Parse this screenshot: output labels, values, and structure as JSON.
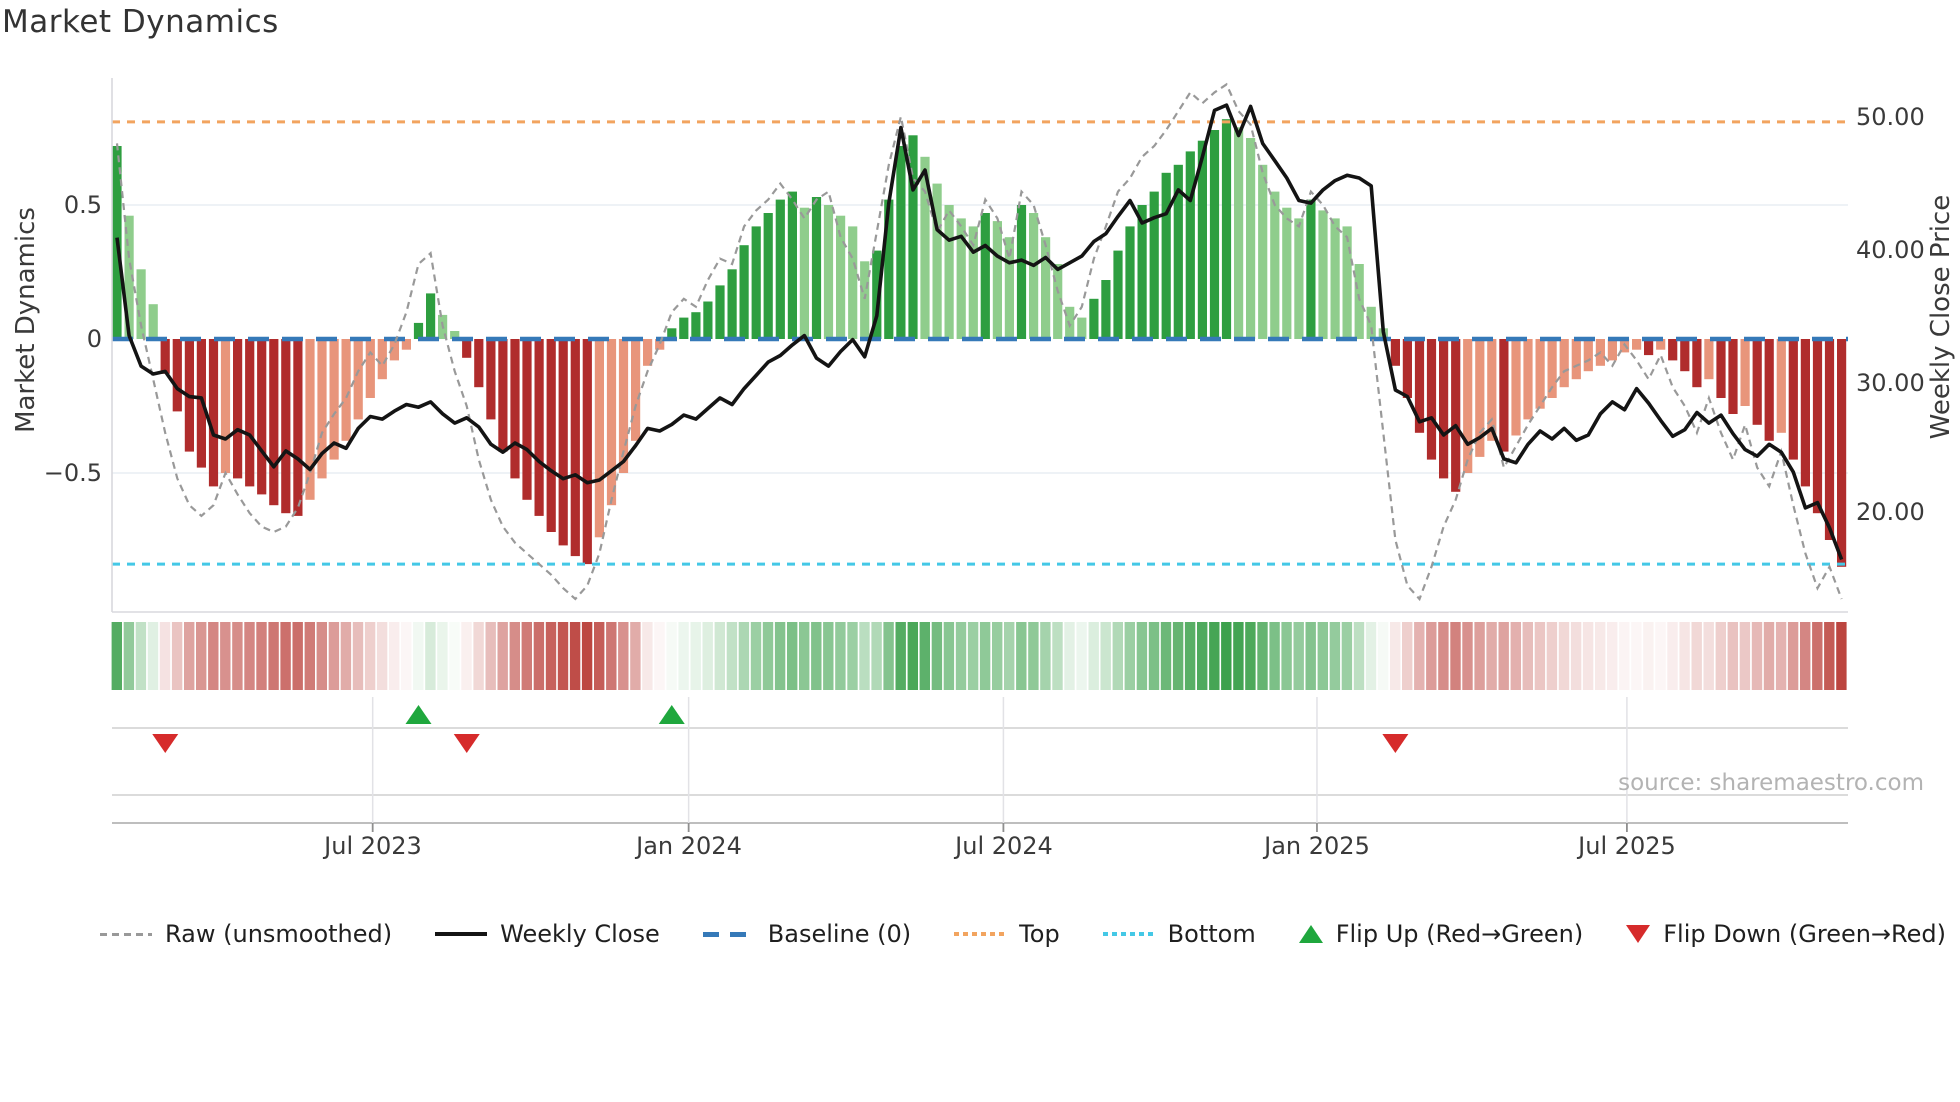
{
  "page": {
    "title": "Market Dynamics"
  },
  "source_note": "source: sharemaestro.com",
  "legend": [
    "Raw (unsmoothed)",
    "Weekly Close",
    "Baseline (0)",
    "Top",
    "Bottom",
    "Flip Up (Red→Green)",
    "Flip Down (Green→Red)"
  ],
  "chart_data": {
    "type": "composite",
    "subtypes": [
      "bar",
      "line",
      "line",
      "heatmap",
      "scatter"
    ],
    "title": "Market Dynamics",
    "ylabel_left": "Market Dynamics",
    "ylabel_right": "Weekly Close Price",
    "grid": "horizontal-only",
    "legend_position": "bottom",
    "left_axis": {
      "ticks": [
        {
          "v": 0.5,
          "label": "0.5"
        },
        {
          "v": 0,
          "label": "0"
        },
        {
          "v": -0.5,
          "label": "−0.5"
        }
      ],
      "range": [
        -0.97,
        0.97
      ]
    },
    "right_axis": {
      "ticks": [
        {
          "v": 50,
          "label": "50.00"
        },
        {
          "v": 40,
          "label": "40.00"
        },
        {
          "v": 30,
          "label": "30.00"
        },
        {
          "v": 20,
          "label": "20.00"
        }
      ],
      "range": [
        12.6,
        52.8
      ]
    },
    "x_axis": {
      "tick_labels": [
        "Jul 2023",
        "Jan 2024",
        "Jul 2024",
        "Jan 2025",
        "Jul 2025"
      ],
      "tick_weeks": [
        21.2,
        47.4,
        73.5,
        99.5,
        125.2
      ],
      "n_weeks": 144
    },
    "baseline": 0,
    "top_threshold": 0.81,
    "bottom_threshold": -0.84,
    "series": {
      "oscillator": {
        "name": "Market Dynamics (smoothed bars)",
        "values": [
          0.72,
          0.46,
          0.26,
          0.13,
          -0.13,
          -0.27,
          -0.42,
          -0.48,
          -0.55,
          -0.5,
          -0.52,
          -0.55,
          -0.58,
          -0.62,
          -0.65,
          -0.66,
          -0.6,
          -0.52,
          -0.45,
          -0.38,
          -0.3,
          -0.22,
          -0.15,
          -0.08,
          -0.04,
          0.06,
          0.17,
          0.09,
          0.03,
          -0.07,
          -0.18,
          -0.3,
          -0.42,
          -0.52,
          -0.6,
          -0.66,
          -0.72,
          -0.77,
          -0.81,
          -0.84,
          -0.74,
          -0.62,
          -0.5,
          -0.38,
          -0.1,
          -0.04,
          0.04,
          0.08,
          0.1,
          0.14,
          0.2,
          0.26,
          0.35,
          0.42,
          0.47,
          0.52,
          0.55,
          0.49,
          0.53,
          0.5,
          0.46,
          0.42,
          0.29,
          0.33,
          0.52,
          0.72,
          0.76,
          0.68,
          0.58,
          0.5,
          0.45,
          0.42,
          0.47,
          0.44,
          0.38,
          0.5,
          0.47,
          0.38,
          0.28,
          0.12,
          0.08,
          0.15,
          0.22,
          0.33,
          0.42,
          0.5,
          0.55,
          0.62,
          0.65,
          0.7,
          0.74,
          0.78,
          0.82,
          0.79,
          0.75,
          0.65,
          0.55,
          0.49,
          0.45,
          0.52,
          0.48,
          0.45,
          0.42,
          0.28,
          0.12,
          0.04,
          -0.1,
          -0.22,
          -0.35,
          -0.45,
          -0.52,
          -0.57,
          -0.5,
          -0.44,
          -0.38,
          -0.42,
          -0.36,
          -0.3,
          -0.26,
          -0.22,
          -0.18,
          -0.15,
          -0.12,
          -0.1,
          -0.08,
          -0.05,
          -0.04,
          -0.06,
          -0.04,
          -0.08,
          -0.12,
          -0.18,
          -0.15,
          -0.22,
          -0.28,
          -0.25,
          -0.32,
          -0.38,
          -0.35,
          -0.45,
          -0.55,
          -0.65,
          -0.75,
          -0.85
        ],
        "shades": [
          "D",
          "L",
          "L",
          "L",
          "D",
          "D",
          "D",
          "D",
          "D",
          "L",
          "D",
          "D",
          "D",
          "D",
          "D",
          "D",
          "L",
          "L",
          "L",
          "L",
          "L",
          "L",
          "L",
          "L",
          "L",
          "D",
          "D",
          "L",
          "L",
          "D",
          "D",
          "D",
          "D",
          "D",
          "D",
          "D",
          "D",
          "D",
          "D",
          "D",
          "L",
          "L",
          "L",
          "L",
          "L",
          "L",
          "D",
          "D",
          "D",
          "D",
          "D",
          "D",
          "D",
          "D",
          "D",
          "D",
          "D",
          "L",
          "D",
          "L",
          "L",
          "L",
          "L",
          "D",
          "D",
          "D",
          "D",
          "L",
          "L",
          "L",
          "L",
          "L",
          "D",
          "L",
          "L",
          "D",
          "L",
          "L",
          "L",
          "L",
          "L",
          "D",
          "D",
          "D",
          "D",
          "D",
          "D",
          "D",
          "D",
          "D",
          "D",
          "D",
          "D",
          "L",
          "L",
          "L",
          "L",
          "L",
          "L",
          "D",
          "L",
          "L",
          "L",
          "L",
          "L",
          "L",
          "D",
          "D",
          "D",
          "D",
          "D",
          "D",
          "L",
          "L",
          "L",
          "D",
          "L",
          "L",
          "L",
          "L",
          "L",
          "L",
          "L",
          "L",
          "L",
          "L",
          "L",
          "D",
          "L",
          "D",
          "D",
          "D",
          "L",
          "D",
          "D",
          "L",
          "D",
          "D",
          "L",
          "D",
          "D",
          "D",
          "D",
          "D"
        ]
      },
      "raw": {
        "name": "Raw (unsmoothed)",
        "values": [
          0.73,
          0.3,
          0.05,
          -0.15,
          -0.35,
          -0.52,
          -0.62,
          -0.66,
          -0.62,
          -0.5,
          -0.58,
          -0.65,
          -0.7,
          -0.72,
          -0.7,
          -0.63,
          -0.5,
          -0.35,
          -0.28,
          -0.22,
          -0.12,
          -0.05,
          -0.1,
          -0.02,
          0.1,
          0.28,
          0.32,
          0.05,
          -0.12,
          -0.25,
          -0.45,
          -0.6,
          -0.7,
          -0.76,
          -0.8,
          -0.84,
          -0.88,
          -0.93,
          -0.97,
          -0.92,
          -0.8,
          -0.6,
          -0.42,
          -0.25,
          -0.12,
          -0.02,
          0.1,
          0.15,
          0.12,
          0.22,
          0.3,
          0.28,
          0.42,
          0.48,
          0.52,
          0.58,
          0.52,
          0.45,
          0.52,
          0.55,
          0.38,
          0.3,
          0.15,
          0.4,
          0.65,
          0.83,
          0.6,
          0.55,
          0.4,
          0.48,
          0.42,
          0.35,
          0.52,
          0.45,
          0.3,
          0.55,
          0.5,
          0.35,
          0.18,
          0.05,
          0.12,
          0.3,
          0.42,
          0.55,
          0.6,
          0.68,
          0.72,
          0.78,
          0.85,
          0.92,
          0.88,
          0.92,
          0.95,
          0.85,
          0.8,
          0.62,
          0.5,
          0.45,
          0.42,
          0.55,
          0.5,
          0.42,
          0.38,
          0.15,
          0.05,
          -0.35,
          -0.75,
          -0.92,
          -0.97,
          -0.85,
          -0.7,
          -0.6,
          -0.45,
          -0.35,
          -0.3,
          -0.48,
          -0.4,
          -0.32,
          -0.25,
          -0.18,
          -0.12,
          -0.1,
          -0.08,
          -0.05,
          -0.1,
          -0.02,
          -0.08,
          -0.15,
          -0.06,
          -0.18,
          -0.25,
          -0.35,
          -0.22,
          -0.35,
          -0.45,
          -0.32,
          -0.48,
          -0.55,
          -0.42,
          -0.62,
          -0.8,
          -0.93,
          -0.85,
          -0.97
        ]
      },
      "weekly_close": {
        "name": "Weekly Close",
        "values": [
          40.9,
          33.5,
          31.2,
          30.6,
          30.8,
          29.5,
          28.9,
          28.8,
          26.0,
          25.7,
          26.4,
          26.0,
          24.8,
          23.6,
          24.8,
          24.2,
          23.4,
          24.6,
          25.4,
          25.0,
          26.5,
          27.4,
          27.2,
          27.8,
          28.3,
          28.1,
          28.5,
          27.6,
          26.9,
          27.3,
          26.6,
          25.3,
          24.7,
          25.4,
          24.9,
          24.0,
          23.3,
          22.7,
          23.0,
          22.4,
          22.6,
          23.3,
          24.0,
          25.2,
          26.5,
          26.3,
          26.8,
          27.5,
          27.2,
          28.0,
          28.8,
          28.3,
          29.5,
          30.5,
          31.5,
          32.0,
          32.8,
          33.5,
          31.8,
          31.2,
          32.3,
          33.2,
          31.9,
          35.0,
          43.5,
          49.2,
          44.5,
          46.0,
          41.5,
          40.7,
          41.0,
          39.8,
          40.3,
          39.5,
          39.0,
          39.2,
          38.8,
          39.4,
          38.5,
          39.0,
          39.5,
          40.6,
          41.2,
          42.5,
          43.7,
          42.0,
          42.4,
          42.7,
          44.5,
          43.7,
          47.0,
          50.5,
          50.9,
          48.6,
          50.8,
          48.0,
          46.7,
          45.4,
          43.7,
          43.5,
          44.5,
          45.2,
          45.6,
          45.4,
          44.8,
          33.8,
          29.4,
          28.9,
          27.0,
          27.3,
          26.0,
          26.7,
          25.3,
          25.8,
          26.5,
          24.2,
          23.9,
          25.3,
          26.3,
          25.7,
          26.5,
          25.6,
          26.0,
          27.6,
          28.5,
          27.9,
          29.5,
          28.4,
          27.1,
          25.9,
          26.4,
          27.7,
          26.9,
          27.5,
          26.1,
          24.9,
          24.4,
          25.3,
          24.7,
          23.2,
          20.5,
          20.9,
          19.0,
          16.6
        ]
      }
    },
    "flip_markers": {
      "up_weeks": [
        25,
        46
      ],
      "down_weeks": [
        4,
        29,
        106
      ]
    },
    "colors": {
      "bar_pos_strong": "#2e9e40",
      "bar_pos_soft": "#8fcd8c",
      "bar_neg_strong": "#b02c2c",
      "bar_neg_soft": "#e8957b",
      "close_line": "#141414",
      "raw_line": "#999999",
      "baseline": "#3579b8",
      "top_line": "#f2a45f",
      "bottom_line": "#44c8e6",
      "flip_up": "#1fa73d",
      "flip_down": "#d62b2b",
      "grid": "#e9edf4",
      "panel_grid": "#cfcfcf",
      "panel_vgrid": "#e2e2e6",
      "axis_line": "#b5b5b5",
      "spine": "#d8d8dd",
      "heat_pos": [
        46,
        154,
        63
      ],
      "heat_neg": [
        186,
        62,
        56
      ]
    }
  }
}
